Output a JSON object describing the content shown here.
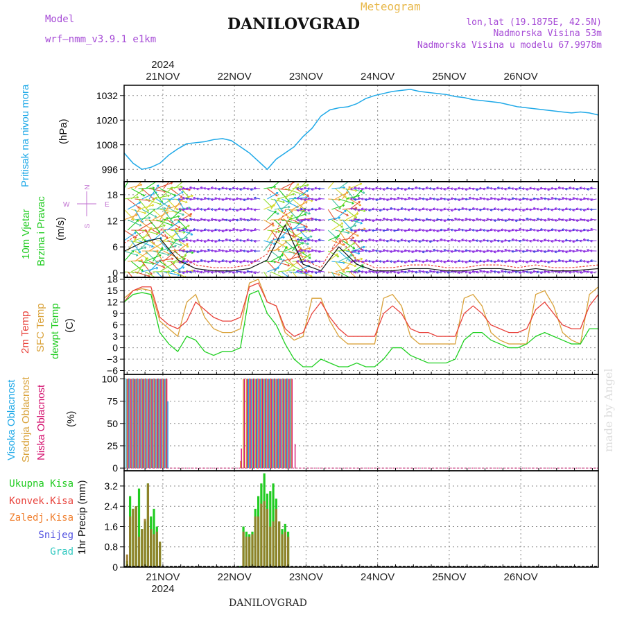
{
  "header": {
    "model_label": "Model",
    "model_name": "wrf–nmm_v3.9.1  e1km",
    "title": "DANILOVGRAD",
    "meteogram_label": "Meteogram",
    "coords": "lon,lat (19.1875E, 42.5N)",
    "elevation": "Nadmorska Visina 53m",
    "model_elevation": "Nadmorska Visina u modelu 67.9978m"
  },
  "footer": {
    "station": "DANILOVGRAD",
    "watermark": "made by Angel"
  },
  "colors": {
    "pressure": "#1fa9e8",
    "t2m": "#e8413a",
    "sfc": "#d9a23a",
    "dewpt": "#1fd020",
    "high": "#1fa9e8",
    "mid": "#d9a23a",
    "low": "#d4106e",
    "rain": "#22cc22",
    "conv": "#e8413a",
    "frz": "#f08030",
    "snow": "#5050e0",
    "hail": "#30c8c0",
    "wind_purple": "#8a2be2",
    "dir_label": "#c070d0"
  },
  "chart_data": [
    {
      "type": "line",
      "panel": "pressure",
      "ylabel_a": "Pritisak na nivou mora",
      "ylabel_b": "(hPa)",
      "yticks": [
        996,
        1008,
        1020,
        1032
      ],
      "ylim": [
        990,
        1037
      ],
      "top_year": "2024",
      "top_day_labels": [
        "21NOV",
        "22NOV",
        "23NOV",
        "24NOV",
        "25NOV",
        "26NOV"
      ],
      "x_hours": [
        0,
        3,
        6,
        9,
        12,
        15,
        18,
        21,
        24,
        27,
        30,
        33,
        36,
        39,
        42,
        45,
        48,
        51,
        54,
        57,
        60,
        63,
        66,
        69,
        72,
        75,
        78,
        81,
        84,
        87,
        90,
        93,
        96,
        99,
        102,
        105,
        108,
        111,
        114,
        117,
        120,
        123,
        126,
        129,
        132,
        135,
        138,
        141,
        144,
        147,
        150,
        153,
        156,
        159
      ],
      "values": [
        1004,
        999,
        996,
        997,
        999,
        1003,
        1006,
        1008.5,
        1009,
        1009.5,
        1010.5,
        1011,
        1010,
        1007,
        1004,
        1000,
        996,
        1001,
        1004,
        1007,
        1012,
        1016,
        1022,
        1025,
        1026,
        1026.5,
        1028,
        1030.5,
        1032,
        1033,
        1034,
        1034.5,
        1035,
        1034,
        1033.5,
        1033,
        1032.5,
        1031.5,
        1031,
        1030,
        1029.5,
        1029,
        1028.5,
        1027.5,
        1026.5,
        1026,
        1025.5,
        1025,
        1024.5,
        1024,
        1023.5,
        1024,
        1023.5,
        1022.5
      ]
    },
    {
      "type": "line",
      "panel": "wind",
      "ylabel_a": "10m Vjetar",
      "ylabel_b": "Brzina i Pravac",
      "ylabel_c": "(m/s)",
      "direction_legend": [
        "N",
        "W",
        "E",
        "S"
      ],
      "yticks": [
        0,
        6,
        12,
        18
      ],
      "ylim": [
        -1,
        21
      ],
      "x_hours": [
        0,
        6,
        12,
        18,
        24,
        30,
        36,
        42,
        48,
        54,
        60,
        66,
        72,
        78,
        84,
        90,
        96,
        102,
        108,
        114,
        120,
        126,
        132,
        138,
        144,
        150,
        159
      ],
      "speed": [
        5,
        7,
        8,
        3,
        1,
        0.5,
        0.5,
        1,
        3,
        11,
        2,
        0.5,
        6,
        2,
        0.5,
        0.5,
        1,
        1,
        0.5,
        0.5,
        1,
        1,
        0.5,
        1,
        0.5,
        0.5,
        1
      ]
    },
    {
      "type": "line",
      "panel": "temperature",
      "ylabel_a": "2m Temp",
      "ylabel_b": "SFC Temp",
      "ylabel_c": "dewpt Temp",
      "ylabel_d": "(C)",
      "yticks": [
        -6,
        -3,
        0,
        3,
        6,
        9,
        12,
        15,
        18
      ],
      "ylim": [
        -7,
        18.5
      ],
      "x_hours": [
        0,
        3,
        6,
        9,
        12,
        15,
        18,
        21,
        24,
        27,
        30,
        33,
        36,
        39,
        42,
        45,
        48,
        51,
        54,
        57,
        60,
        63,
        66,
        69,
        72,
        75,
        78,
        81,
        84,
        87,
        90,
        93,
        96,
        99,
        102,
        105,
        108,
        111,
        114,
        117,
        120,
        123,
        126,
        129,
        132,
        135,
        138,
        141,
        144,
        147,
        150,
        153,
        156,
        159
      ],
      "series": [
        {
          "name": "2m Temp",
          "values": [
            12,
            15,
            16,
            16,
            8,
            6,
            5,
            7,
            12,
            10,
            8,
            7,
            7,
            8,
            16,
            17,
            12,
            11,
            5,
            3,
            4,
            9,
            12,
            8,
            5,
            3,
            3,
            3,
            3,
            9,
            11,
            9,
            5,
            4,
            4,
            3,
            3,
            3,
            9,
            11,
            9,
            6,
            5,
            4,
            4,
            5,
            10,
            12,
            9,
            6,
            5,
            5,
            11,
            14
          ]
        },
        {
          "name": "SFC Temp",
          "values": [
            13,
            15,
            15.5,
            15,
            7,
            5,
            3,
            12,
            14,
            8,
            5,
            4,
            4,
            5,
            17,
            18,
            12,
            11,
            4,
            2,
            3,
            13,
            13,
            7,
            3,
            1,
            1,
            1,
            1,
            13,
            14,
            11,
            3,
            1,
            1,
            1,
            1,
            1,
            13,
            14,
            11,
            4,
            2,
            1,
            1,
            1,
            14,
            15,
            11,
            4,
            2,
            1,
            14,
            16
          ]
        },
        {
          "name": "dewpt Temp",
          "values": [
            12,
            14,
            14.5,
            14,
            4,
            1,
            -1,
            3,
            2,
            -1,
            -2,
            -1,
            -1,
            0,
            14,
            15,
            9,
            6,
            1,
            -3,
            -5,
            -5,
            -3,
            -4,
            -5,
            -5,
            -4,
            -5,
            -5,
            -3,
            0,
            0,
            -2,
            -3,
            -4,
            -4,
            -4,
            -3,
            2,
            4,
            4,
            2,
            1,
            0,
            0,
            1,
            3,
            4,
            3,
            2,
            1,
            1,
            5,
            5
          ]
        }
      ]
    },
    {
      "type": "bar",
      "panel": "clouds",
      "ylabel_a": "Visoka Oblacnost",
      "ylabel_b": "Srednja Oblacnost",
      "ylabel_c": "Niska Oblacnost",
      "ylabel_d": "(%)",
      "yticks": [
        0,
        25,
        50,
        75,
        100
      ],
      "ylim": [
        -3,
        105
      ],
      "x_hours": [
        1,
        2,
        3,
        4,
        5,
        6,
        7,
        8,
        9,
        10,
        11,
        12,
        13,
        14,
        15,
        39,
        40,
        41,
        42,
        43,
        44,
        45,
        46,
        47,
        48,
        49,
        50,
        51,
        52,
        53,
        54,
        55,
        56,
        57
      ],
      "series": [
        {
          "name": "Visoka Oblacnost",
          "values": [
            100,
            100,
            100,
            100,
            100,
            100,
            100,
            100,
            100,
            100,
            100,
            100,
            100,
            100,
            75,
            0,
            0,
            0,
            100,
            100,
            100,
            100,
            100,
            100,
            100,
            100,
            100,
            100,
            100,
            100,
            100,
            100,
            100,
            0
          ]
        },
        {
          "name": "Srednja Oblacnost",
          "values": [
            100,
            100,
            100,
            100,
            100,
            100,
            100,
            100,
            100,
            100,
            100,
            100,
            100,
            100,
            0,
            8,
            100,
            100,
            100,
            100,
            100,
            100,
            100,
            100,
            100,
            100,
            100,
            100,
            100,
            100,
            100,
            100,
            100,
            0
          ]
        },
        {
          "name": "Niska Oblacnost",
          "values": [
            100,
            100,
            100,
            100,
            100,
            100,
            100,
            100,
            100,
            100,
            100,
            100,
            100,
            100,
            0,
            22,
            100,
            100,
            100,
            100,
            100,
            100,
            100,
            100,
            100,
            100,
            100,
            100,
            100,
            100,
            100,
            100,
            100,
            27
          ]
        }
      ]
    },
    {
      "type": "bar",
      "panel": "precip",
      "legend": [
        "Ukupna Kisa",
        "Konvek.Kisa",
        "Zaledj.Kisa",
        "Snijeg",
        "Grad"
      ],
      "ylabel_a": "1hr Precip (mm)",
      "yticks": [
        0,
        0.8,
        1.6,
        2.4,
        3.2
      ],
      "ylim": [
        0,
        3.8
      ],
      "bottom_day_labels": [
        "21NOV",
        "22NOV",
        "23NOV",
        "24NOV",
        "25NOV",
        "26NOV"
      ],
      "bottom_year": "2024",
      "x_hours": [
        1,
        2,
        3,
        4,
        5,
        6,
        7,
        8,
        9,
        10,
        11,
        12,
        13,
        14,
        39,
        40,
        41,
        42,
        43,
        44,
        45,
        46,
        47,
        48,
        49,
        50,
        51,
        52,
        53,
        54,
        55,
        56
      ],
      "series": [
        {
          "name": "Ukupna Kisa",
          "values": [
            0.25,
            2.8,
            2.3,
            2.4,
            3.1,
            1.5,
            1.8,
            3.3,
            2.0,
            2.3,
            1.6,
            1.0,
            0,
            0,
            0.05,
            1.6,
            1.4,
            1.3,
            1.4,
            2.3,
            2.8,
            3.3,
            3.7,
            2.9,
            3.0,
            3.3,
            2.7,
            1.8,
            1.5,
            1.7,
            1.4,
            0
          ]
        },
        {
          "name": "Konvek.Kisa",
          "values": [
            0.5,
            2.0,
            2.3,
            2.4,
            1.2,
            1.5,
            1.9,
            3.3,
            1.5,
            1.3,
            1.4,
            1.0,
            0,
            0,
            0,
            1.4,
            1.2,
            1.2,
            1.3,
            2.0,
            2.0,
            2.5,
            2.6,
            2.3,
            1.6,
            1.8,
            2.3,
            1.8,
            1.3,
            1.4,
            1.2,
            0
          ]
        }
      ]
    }
  ]
}
